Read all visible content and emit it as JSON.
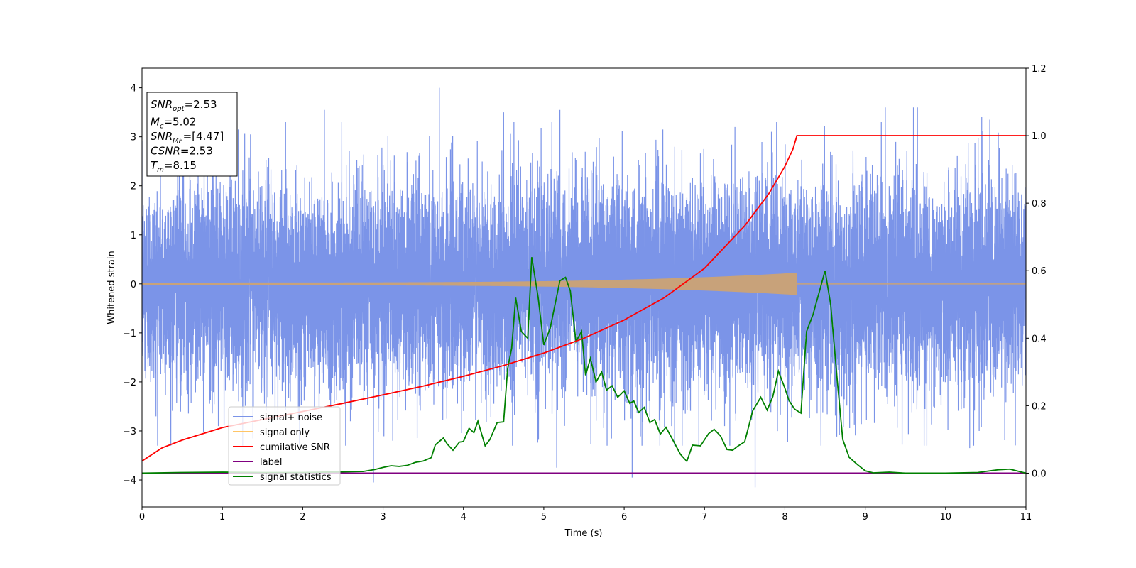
{
  "chart_data": {
    "type": "line",
    "xlabel": "Time (s)",
    "ylabel": "Whitened strain",
    "xlim": [
      0,
      11
    ],
    "ylim_left": [
      -4.55,
      4.4
    ],
    "ylim_right": [
      -0.1,
      1.2
    ],
    "x_ticks": [
      0,
      1,
      2,
      3,
      4,
      5,
      6,
      7,
      8,
      9,
      10,
      11
    ],
    "y_ticks_left": [
      -4,
      -3,
      -2,
      -1,
      0,
      1,
      2,
      3,
      4
    ],
    "y_ticks_right": [
      0.0,
      0.2,
      0.4,
      0.6,
      0.8,
      1.0,
      1.2
    ],
    "x_tick_labels": [
      "0",
      "1",
      "2",
      "3",
      "4",
      "5",
      "6",
      "7",
      "8",
      "9",
      "10",
      "11"
    ],
    "y_tick_labels_left": [
      "−4",
      "−3",
      "−2",
      "−1",
      "0",
      "1",
      "2",
      "3",
      "4"
    ],
    "y_tick_labels_right": [
      "0.0",
      "0.2",
      "0.4",
      "0.6",
      "0.8",
      "1.0",
      "1.2"
    ],
    "grid": false,
    "legend_position": "lower-left",
    "annotation_box": {
      "position": "upper-left",
      "lines": [
        {
          "sym": "SNR",
          "sub": "opt",
          "value": "=2.53"
        },
        {
          "sym": "M",
          "sub": "c",
          "value": "=5.02"
        },
        {
          "sym": "SNR",
          "sub": "MF",
          "value": "=[4.47]"
        },
        {
          "sym": "CSNR",
          "sub": "",
          "value": "=2.53"
        },
        {
          "sym": "T",
          "sub": "m",
          "value": "=8.15"
        }
      ]
    },
    "series": [
      {
        "name": "signal+ noise",
        "axis": "left",
        "color": "#7b94e8",
        "description_values": "white-noise-like strain, std about 1.05, peaks near +4.0 at x=3.7 and -4.2 at x=7.65",
        "std": 1.05,
        "n_points": 11000,
        "spikes": [
          [
            1.35,
            3.05
          ],
          [
            2.27,
            3.55
          ],
          [
            3.7,
            4.0
          ],
          [
            4.5,
            3.5
          ],
          [
            5.1,
            3.3
          ],
          [
            5.2,
            3.55
          ],
          [
            9.25,
            3.6
          ],
          [
            9.6,
            3.6
          ],
          [
            9.65,
            3.6
          ],
          [
            10.45,
            3.4
          ],
          [
            10.55,
            3.35
          ],
          [
            2.88,
            -4.05
          ],
          [
            3.12,
            -3.2
          ],
          [
            5.16,
            -3.75
          ],
          [
            6.1,
            -3.95
          ],
          [
            7.63,
            -4.15
          ],
          [
            10.3,
            -3.35
          ],
          [
            8.45,
            -3.3
          ],
          [
            0.95,
            -2.9
          ]
        ]
      },
      {
        "name": "signal only",
        "axis": "left",
        "color": "#ffc566",
        "description_values": "chirp near zero with amplitude growing from about 0.02 at x=0 to about 0.22 at x=8.15, then 0",
        "amp_start": 0.02,
        "amp_end": 0.22,
        "t_merge": 8.15
      },
      {
        "name": "cumilative SNR",
        "axis": "right",
        "color": "#ff0000",
        "x": [
          0,
          0.25,
          0.5,
          1,
          1.5,
          2,
          2.5,
          3,
          3.5,
          4,
          4.5,
          5,
          5.5,
          6,
          6.5,
          7,
          7.5,
          7.8,
          8.0,
          8.1,
          8.15,
          11
        ],
        "y": [
          0.036,
          0.075,
          0.098,
          0.135,
          0.159,
          0.183,
          0.207,
          0.232,
          0.258,
          0.287,
          0.319,
          0.356,
          0.4,
          0.454,
          0.52,
          0.607,
          0.733,
          0.828,
          0.909,
          0.96,
          1.0,
          1.0
        ]
      },
      {
        "name": "label",
        "axis": "right",
        "color": "#800080",
        "x": [
          0,
          11
        ],
        "y": [
          0.0,
          0.0
        ]
      },
      {
        "name": "signal statistics",
        "axis": "right",
        "color": "#008000",
        "x": [
          0,
          0.5,
          1.0,
          1.5,
          2.0,
          2.5,
          2.75,
          2.9,
          3.0,
          3.1,
          3.2,
          3.3,
          3.4,
          3.5,
          3.6,
          3.65,
          3.75,
          3.8,
          3.87,
          3.95,
          4.0,
          4.07,
          4.13,
          4.18,
          4.27,
          4.33,
          4.42,
          4.5,
          4.55,
          4.6,
          4.65,
          4.72,
          4.8,
          4.85,
          4.93,
          5.0,
          5.08,
          5.2,
          5.27,
          5.33,
          5.4,
          5.47,
          5.52,
          5.58,
          5.65,
          5.72,
          5.78,
          5.85,
          5.92,
          6.0,
          6.07,
          6.12,
          6.18,
          6.25,
          6.32,
          6.38,
          6.45,
          6.52,
          6.6,
          6.7,
          6.78,
          6.85,
          6.95,
          7.05,
          7.12,
          7.2,
          7.28,
          7.35,
          7.42,
          7.5,
          7.6,
          7.7,
          7.78,
          7.85,
          7.92,
          8.0,
          8.05,
          8.12,
          8.2,
          8.27,
          8.35,
          8.42,
          8.5,
          8.57,
          8.65,
          8.72,
          8.8,
          8.9,
          9.0,
          9.1,
          9.3,
          9.5,
          10.0,
          10.4,
          10.65,
          10.8,
          11
        ],
        "y": [
          0.0,
          0.002,
          0.003,
          0.002,
          0.002,
          0.004,
          0.005,
          0.011,
          0.017,
          0.022,
          0.02,
          0.023,
          0.032,
          0.036,
          0.046,
          0.084,
          0.104,
          0.086,
          0.068,
          0.092,
          0.094,
          0.133,
          0.12,
          0.154,
          0.081,
          0.1,
          0.15,
          0.152,
          0.31,
          0.37,
          0.52,
          0.42,
          0.4,
          0.64,
          0.52,
          0.38,
          0.43,
          0.57,
          0.58,
          0.54,
          0.39,
          0.42,
          0.29,
          0.34,
          0.27,
          0.3,
          0.246,
          0.259,
          0.225,
          0.244,
          0.207,
          0.214,
          0.18,
          0.195,
          0.15,
          0.159,
          0.116,
          0.136,
          0.101,
          0.056,
          0.035,
          0.083,
          0.081,
          0.117,
          0.13,
          0.11,
          0.07,
          0.068,
          0.081,
          0.093,
          0.185,
          0.225,
          0.187,
          0.227,
          0.302,
          0.252,
          0.216,
          0.19,
          0.178,
          0.42,
          0.47,
          0.53,
          0.6,
          0.5,
          0.28,
          0.1,
          0.047,
          0.026,
          0.007,
          0.001,
          0.003,
          0.0,
          0.0,
          0.002,
          0.01,
          0.012,
          0.0
        ]
      }
    ]
  }
}
